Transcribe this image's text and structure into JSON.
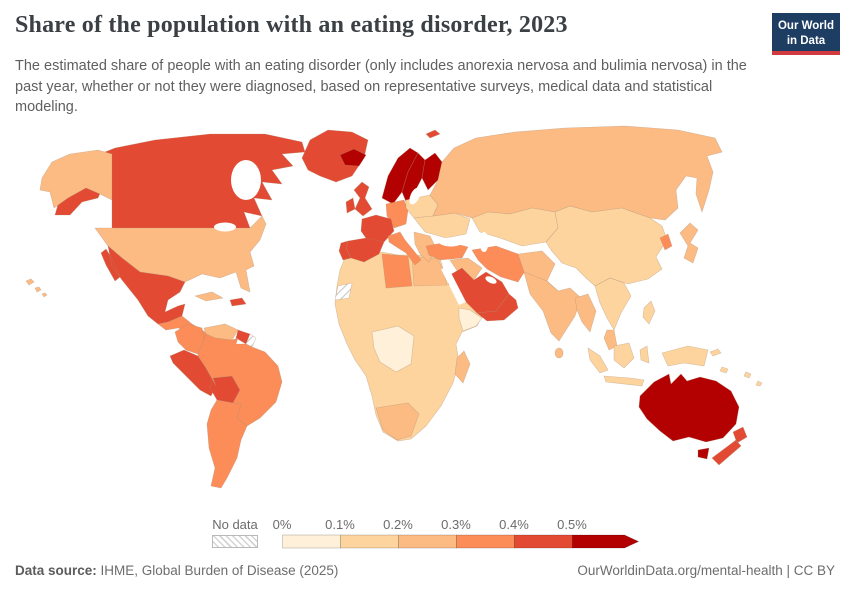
{
  "header": {
    "title": "Share of the population with an eating disorder, 2023",
    "subtitle": "The estimated share of people with an eating disorder (only includes anorexia nervosa and bulimia nervosa) in the past year, whether or not they were diagnosed, based on representative surveys, medical data and statistical modeling.",
    "logo": {
      "line1": "Our World",
      "line2": "in Data",
      "bg_color": "#1d3d63",
      "accent_color": "#d13b40"
    }
  },
  "legend": {
    "no_data_label": "No data",
    "ticks": [
      "0%",
      "0.1%",
      "0.2%",
      "0.3%",
      "0.4%",
      "0.5%"
    ]
  },
  "footer": {
    "source_label": "Data source:",
    "source_value": " IHME, Global Burden of Disease (2025)",
    "right_text": "OurWorldinData.org/mental-health | CC BY"
  },
  "chart_data": {
    "type": "choropleth",
    "title": "Share of the population with an eating disorder",
    "year": "2023",
    "unit": "% of population",
    "legend_bins": [
      {
        "label": "0%–0.1%",
        "color": "#fef0d9"
      },
      {
        "label": "0.1%–0.2%",
        "color": "#fdd49e"
      },
      {
        "label": "0.2%–0.3%",
        "color": "#fdbb84"
      },
      {
        "label": "0.3%–0.4%",
        "color": "#fc8d59"
      },
      {
        "label": "0.4%–0.5%",
        "color": "#e34a33"
      },
      {
        "label": ">0.5%",
        "color": "#b30000"
      },
      {
        "label": "No data",
        "color": "hatch"
      }
    ],
    "regions": [
      {
        "id": "africa",
        "name": "Sub-Saharan Africa",
        "bin": "0.1%–0.2%",
        "color": "#fdd49e"
      },
      {
        "id": "libya",
        "name": "Libya",
        "bin": "0.3%–0.4%",
        "color": "#fc8d59"
      },
      {
        "id": "egypt",
        "name": "Egypt",
        "bin": "0.2%–0.3%",
        "color": "#fdbb84"
      },
      {
        "id": "western-sahara",
        "name": "Western Sahara",
        "bin": "No data",
        "color": "hatch"
      },
      {
        "id": "dr-congo",
        "name": "Democratic Republic of Congo",
        "bin": "0%–0.1%",
        "color": "#fef0d9"
      },
      {
        "id": "somalia",
        "name": "Somalia",
        "bin": "0%–0.1%",
        "color": "#fef0d9"
      },
      {
        "id": "south-africa",
        "name": "South Africa",
        "bin": "0.2%–0.3%",
        "color": "#fdbb84"
      },
      {
        "id": "madagascar",
        "name": "Madagascar",
        "bin": "0.2%–0.3%",
        "color": "#fdbb84"
      },
      {
        "id": "canada",
        "name": "Canada",
        "bin": "0.4%–0.5%",
        "color": "#e34a33"
      },
      {
        "id": "alaska",
        "name": "Alaska (United States)",
        "bin": "0.2%–0.3%",
        "color": "#fdbb84"
      },
      {
        "id": "greenland",
        "name": "Greenland",
        "bin": "0.4%–0.5%",
        "color": "#e34a33"
      },
      {
        "id": "usa",
        "name": "United States",
        "bin": "0.2%–0.3%",
        "color": "#fdbb84"
      },
      {
        "id": "hawaii",
        "name": "Hawaii (United States)",
        "bin": "0.2%–0.3%",
        "color": "#fdbb84"
      },
      {
        "id": "mexico",
        "name": "Mexico",
        "bin": "0.4%–0.5%",
        "color": "#e34a33"
      },
      {
        "id": "central-america",
        "name": "Central America",
        "bin": "0.3%–0.4%",
        "color": "#fc8d59"
      },
      {
        "id": "cuba",
        "name": "Cuba",
        "bin": "0.2%–0.3%",
        "color": "#fdbb84"
      },
      {
        "id": "hispaniola",
        "name": "Hispaniola",
        "bin": "0.4%–0.5%",
        "color": "#e34a33"
      },
      {
        "id": "colombia",
        "name": "Colombia",
        "bin": "0.3%–0.4%",
        "color": "#fc8d59"
      },
      {
        "id": "venezuela",
        "name": "Venezuela",
        "bin": "0.2%–0.3%",
        "color": "#fdbb84"
      },
      {
        "id": "guyanas",
        "name": "Guyana",
        "bin": "0.4%–0.5%",
        "color": "#e34a33"
      },
      {
        "id": "french-guiana",
        "name": "French Guiana",
        "bin": "No data",
        "color": "hatch"
      },
      {
        "id": "peru-ecuador",
        "name": "Peru & Ecuador",
        "bin": "0.4%–0.5%",
        "color": "#e34a33"
      },
      {
        "id": "bolivia",
        "name": "Bolivia",
        "bin": "0.4%–0.5%",
        "color": "#e34a33"
      },
      {
        "id": "brazil",
        "name": "Brazil",
        "bin": "0.3%–0.4%",
        "color": "#fc8d59"
      },
      {
        "id": "southern-cone",
        "name": "Argentina, Chile & Paraguay",
        "bin": "0.3%–0.4%",
        "color": "#fc8d59"
      },
      {
        "id": "iceland",
        "name": "Iceland",
        "bin": ">0.5%",
        "color": "#b30000"
      },
      {
        "id": "svalbard",
        "name": "Svalbard",
        "bin": "0.4%–0.5%",
        "color": "#e34a33"
      },
      {
        "id": "norway",
        "name": "Norway",
        "bin": ">0.5%",
        "color": "#b30000"
      },
      {
        "id": "sweden",
        "name": "Sweden",
        "bin": ">0.5%",
        "color": "#b30000"
      },
      {
        "id": "finland",
        "name": "Finland",
        "bin": ">0.5%",
        "color": "#b30000"
      },
      {
        "id": "denmark",
        "name": "Denmark",
        "bin": "0.4%–0.5%",
        "color": "#e34a33"
      },
      {
        "id": "uk",
        "name": "United Kingdom",
        "bin": "0.4%–0.5%",
        "color": "#e34a33"
      },
      {
        "id": "ireland",
        "name": "Ireland",
        "bin": "0.4%–0.5%",
        "color": "#e34a33"
      },
      {
        "id": "germany-central",
        "name": "Germany & Central Europe",
        "bin": "0.3%–0.4%",
        "color": "#fc8d59"
      },
      {
        "id": "poland-baltics",
        "name": "Poland & Baltic states",
        "bin": "0.1%–0.2%",
        "color": "#fdd49e"
      },
      {
        "id": "eastern-europe",
        "name": "Ukraine & Eastern Europe",
        "bin": "0.1%–0.2%",
        "color": "#fdd49e"
      },
      {
        "id": "france",
        "name": "France",
        "bin": "0.4%–0.5%",
        "color": "#e34a33"
      },
      {
        "id": "spain",
        "name": "Spain",
        "bin": "0.4%–0.5%",
        "color": "#e34a33"
      },
      {
        "id": "portugal",
        "name": "Portugal",
        "bin": "0.4%–0.5%",
        "color": "#e34a33"
      },
      {
        "id": "italy",
        "name": "Italy",
        "bin": "0.3%–0.4%",
        "color": "#fc8d59"
      },
      {
        "id": "balkans",
        "name": "Balkans & Greece",
        "bin": "0.2%–0.3%",
        "color": "#fdbb84"
      },
      {
        "id": "russia",
        "name": "Russia",
        "bin": "0.2%–0.3%",
        "color": "#fdbb84"
      },
      {
        "id": "central-asia",
        "name": "Kazakhstan & Central Asia",
        "bin": "0.1%–0.2%",
        "color": "#fdd49e"
      },
      {
        "id": "turkey",
        "name": "Turkey",
        "bin": "0.3%–0.4%",
        "color": "#fc8d59"
      },
      {
        "id": "syria-iraq",
        "name": "Syria & Iraq",
        "bin": "0.2%–0.3%",
        "color": "#fdbb84"
      },
      {
        "id": "saudi-arabia",
        "name": "Saudi Arabia",
        "bin": "0.4%–0.5%",
        "color": "#e34a33"
      },
      {
        "id": "yemen-oman",
        "name": "Oman, UAE & Yemen",
        "bin": "0.4%–0.5%",
        "color": "#e34a33"
      },
      {
        "id": "iran",
        "name": "Iran",
        "bin": "0.3%–0.4%",
        "color": "#fc8d59"
      },
      {
        "id": "afghanistan-pakistan",
        "name": "Afghanistan & Pakistan",
        "bin": "0.2%–0.3%",
        "color": "#fdbb84"
      },
      {
        "id": "india",
        "name": "India",
        "bin": "0.2%–0.3%",
        "color": "#fdbb84"
      },
      {
        "id": "sri-lanka",
        "name": "Sri Lanka",
        "bin": "0.2%–0.3%",
        "color": "#fdbb84"
      },
      {
        "id": "myanmar-bangladesh",
        "name": "Myanmar & Bangladesh",
        "bin": "0.2%–0.3%",
        "color": "#fdbb84"
      },
      {
        "id": "china",
        "name": "China & Mongolia",
        "bin": "0.1%–0.2%",
        "color": "#fdd49e"
      },
      {
        "id": "south-korea",
        "name": "South Korea",
        "bin": "0.3%–0.4%",
        "color": "#fc8d59"
      },
      {
        "id": "japan",
        "name": "Japan",
        "bin": "0.2%–0.3%",
        "color": "#fdbb84"
      },
      {
        "id": "se-asia",
        "name": "Thailand, Vietnam & Indochina",
        "bin": "0.1%–0.2%",
        "color": "#fdd49e"
      },
      {
        "id": "malaysia",
        "name": "Malaysia",
        "bin": "0.2%–0.3%",
        "color": "#fdbb84"
      },
      {
        "id": "philippines",
        "name": "Philippines",
        "bin": "0.1%–0.2%",
        "color": "#fdd49e"
      },
      {
        "id": "indonesia",
        "name": "Indonesia",
        "bin": "0.1%–0.2%",
        "color": "#fdd49e"
      },
      {
        "id": "new-guinea",
        "name": "Papua New Guinea",
        "bin": "0.1%–0.2%",
        "color": "#fdd49e"
      },
      {
        "id": "pacific-islands",
        "name": "Pacific island states",
        "bin": "0.1%–0.2%",
        "color": "#fdd49e"
      },
      {
        "id": "australia",
        "name": "Australia",
        "bin": ">0.5%",
        "color": "#b30000"
      },
      {
        "id": "tasmania",
        "name": "Tasmania (Australia)",
        "bin": ">0.5%",
        "color": "#b30000"
      },
      {
        "id": "new-zealand",
        "name": "New Zealand",
        "bin": "0.4%–0.5%",
        "color": "#e34a33"
      }
    ]
  }
}
